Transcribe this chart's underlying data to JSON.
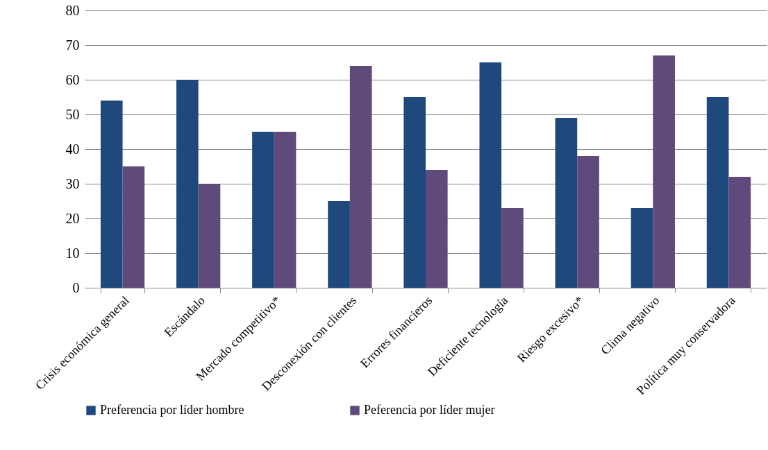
{
  "chart_data": {
    "type": "bar",
    "categories": [
      "Crisis económica general",
      "Escándalo",
      "Mercado competitivo*",
      "Desconexión con  clientes",
      "Errores financieros",
      "Deficiente tecnología",
      "Riesgo excesivo*",
      "Clima negativo",
      "Política muy conservadora"
    ],
    "series": [
      {
        "name": "Preferencia por líder hombre",
        "color": "#1f497d",
        "values": [
          54,
          60,
          45,
          25,
          55,
          65,
          49,
          23,
          55
        ]
      },
      {
        "name": "Peferencia por líder mujer",
        "color": "#604a7b",
        "values": [
          35,
          30,
          45,
          64,
          34,
          23,
          38,
          67,
          32
        ]
      }
    ],
    "ylim": [
      0,
      80
    ],
    "yticks": [
      0,
      10,
      20,
      30,
      40,
      50,
      60,
      70,
      80
    ],
    "grid": "y",
    "legend": "bottom"
  }
}
